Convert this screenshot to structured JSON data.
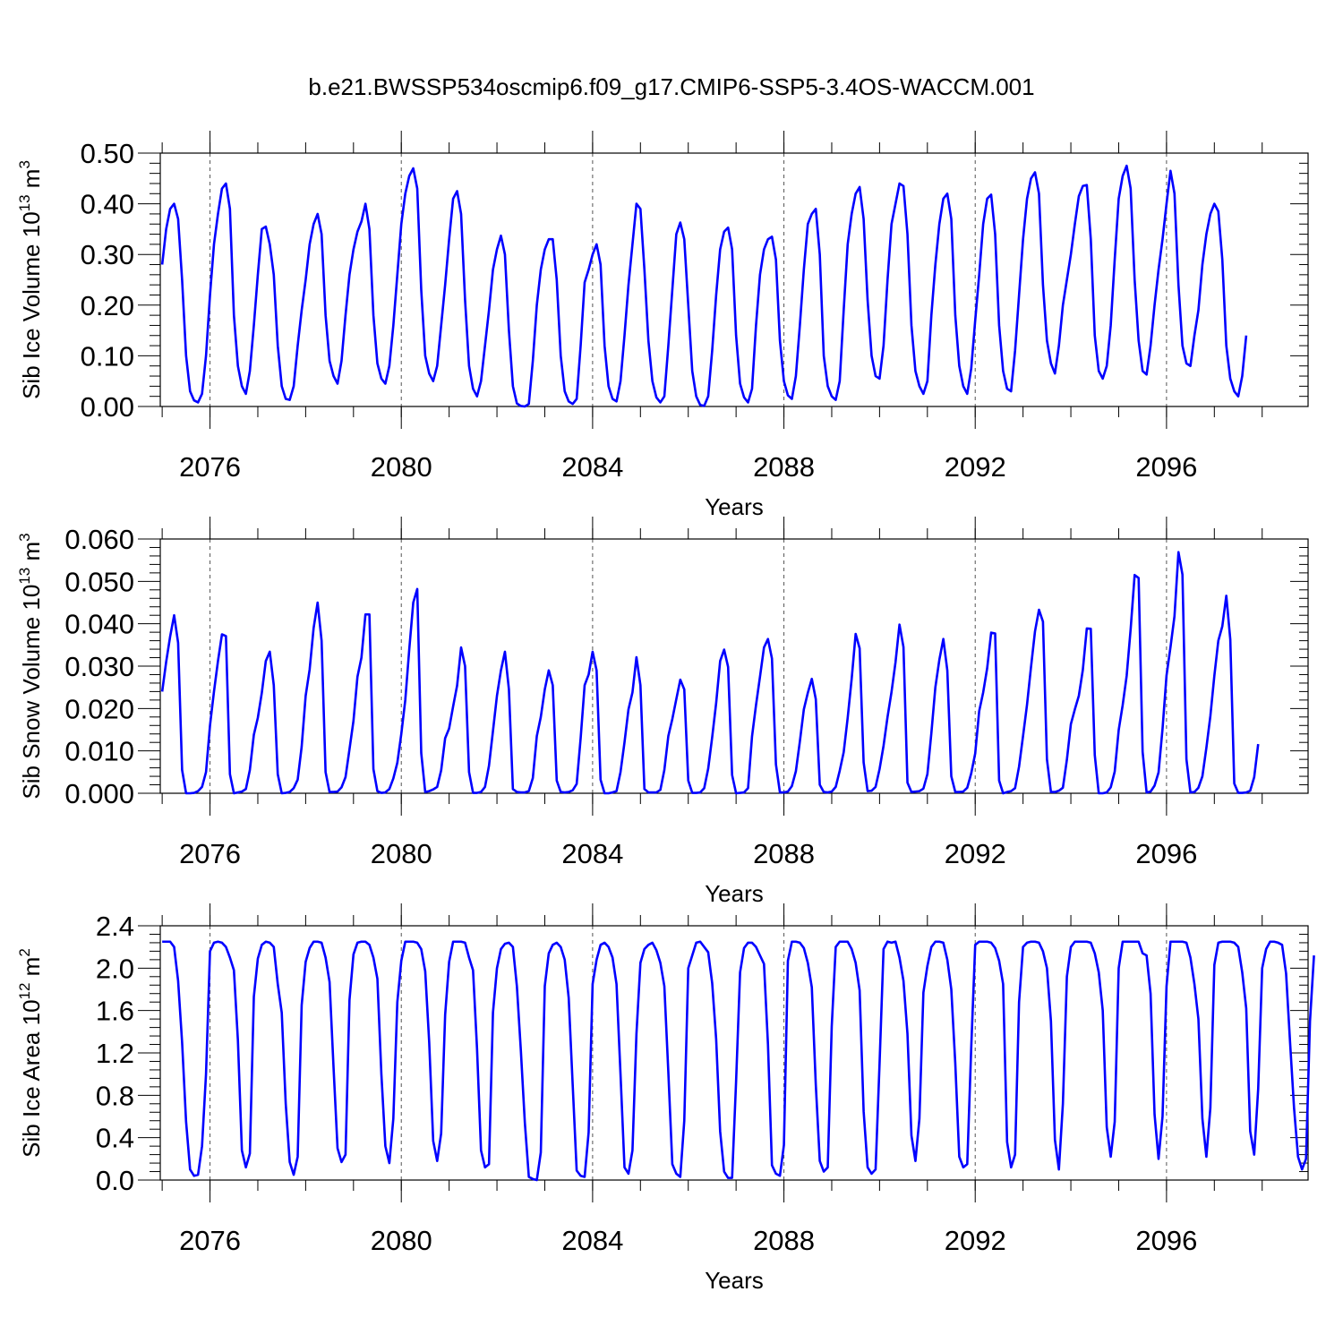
{
  "title": "b.e21.BWSSP534oscmip6.f09_g17.CMIP6-SSP5-3.4OS-WACCM.001",
  "line_color": "#0000ff",
  "chart_data": [
    {
      "type": "line",
      "ylabel_main": "Sib Ice Volume 10",
      "ylabel_exp": "13",
      "ylabel_unit": " m",
      "ylabel_unit_exp": "3",
      "xlabel": "Years",
      "xlim": [
        2074.96,
        2098.96
      ],
      "ylim": [
        0,
        0.5
      ],
      "x_ticks": [
        "2076",
        "2080",
        "2084",
        "2088",
        "2092",
        "2096"
      ],
      "y_ticks": [
        "0.00",
        "0.10",
        "0.20",
        "0.30",
        "0.40",
        "0.50"
      ],
      "grid_x": true,
      "x_start": 2075.0,
      "x_step_months": 1,
      "values": [
        0.28,
        0.35,
        0.39,
        0.4,
        0.37,
        0.25,
        0.1,
        0.03,
        0.012,
        0.008,
        0.025,
        0.1,
        0.22,
        0.32,
        0.38,
        0.43,
        0.44,
        0.39,
        0.18,
        0.08,
        0.04,
        0.025,
        0.07,
        0.16,
        0.26,
        0.35,
        0.355,
        0.32,
        0.26,
        0.12,
        0.04,
        0.015,
        0.013,
        0.04,
        0.12,
        0.19,
        0.25,
        0.32,
        0.36,
        0.38,
        0.34,
        0.18,
        0.09,
        0.06,
        0.045,
        0.09,
        0.18,
        0.26,
        0.31,
        0.345,
        0.365,
        0.4,
        0.35,
        0.18,
        0.085,
        0.055,
        0.045,
        0.08,
        0.16,
        0.26,
        0.36,
        0.42,
        0.455,
        0.47,
        0.43,
        0.23,
        0.1,
        0.065,
        0.05,
        0.08,
        0.16,
        0.24,
        0.33,
        0.41,
        0.425,
        0.38,
        0.21,
        0.08,
        0.035,
        0.02,
        0.05,
        0.12,
        0.19,
        0.27,
        0.31,
        0.337,
        0.3,
        0.15,
        0.04,
        0.006,
        0.001,
        0.0,
        0.005,
        0.09,
        0.2,
        0.27,
        0.31,
        0.33,
        0.33,
        0.25,
        0.1,
        0.03,
        0.01,
        0.005,
        0.015,
        0.12,
        0.245,
        0.27,
        0.3,
        0.32,
        0.28,
        0.12,
        0.04,
        0.015,
        0.01,
        0.05,
        0.14,
        0.24,
        0.32,
        0.4,
        0.39,
        0.27,
        0.13,
        0.05,
        0.018,
        0.008,
        0.02,
        0.12,
        0.23,
        0.34,
        0.363,
        0.33,
        0.2,
        0.07,
        0.02,
        0.003,
        0.001,
        0.02,
        0.11,
        0.22,
        0.31,
        0.345,
        0.353,
        0.31,
        0.14,
        0.045,
        0.018,
        0.008,
        0.035,
        0.16,
        0.26,
        0.31,
        0.33,
        0.335,
        0.29,
        0.13,
        0.05,
        0.022,
        0.015,
        0.06,
        0.16,
        0.27,
        0.36,
        0.38,
        0.39,
        0.3,
        0.1,
        0.04,
        0.02,
        0.013,
        0.05,
        0.19,
        0.32,
        0.38,
        0.42,
        0.433,
        0.37,
        0.21,
        0.1,
        0.06,
        0.055,
        0.12,
        0.25,
        0.36,
        0.4,
        0.44,
        0.435,
        0.34,
        0.16,
        0.07,
        0.04,
        0.025,
        0.05,
        0.18,
        0.28,
        0.36,
        0.41,
        0.42,
        0.37,
        0.18,
        0.08,
        0.04,
        0.025,
        0.075,
        0.17,
        0.26,
        0.36,
        0.41,
        0.418,
        0.34,
        0.16,
        0.07,
        0.035,
        0.03,
        0.11,
        0.22,
        0.33,
        0.41,
        0.45,
        0.462,
        0.42,
        0.24,
        0.13,
        0.085,
        0.065,
        0.12,
        0.2,
        0.25,
        0.3,
        0.36,
        0.415,
        0.435,
        0.437,
        0.33,
        0.14,
        0.07,
        0.055,
        0.08,
        0.16,
        0.29,
        0.41,
        0.455,
        0.475,
        0.43,
        0.25,
        0.13,
        0.07,
        0.063,
        0.12,
        0.2,
        0.27,
        0.33,
        0.4,
        0.465,
        0.42,
        0.24,
        0.12,
        0.085,
        0.08,
        0.14,
        0.19,
        0.28,
        0.34,
        0.38,
        0.4,
        0.385,
        0.29,
        0.12,
        0.055,
        0.03,
        0.02,
        0.06,
        0.14
      ]
    },
    {
      "type": "line",
      "ylabel_main": "Sib Snow Volume 10",
      "ylabel_exp": "13",
      "ylabel_unit": " m",
      "ylabel_unit_exp": "3",
      "xlabel": "Years",
      "xlim": [
        2074.96,
        2098.96
      ],
      "ylim": [
        0,
        0.06
      ],
      "x_ticks": [
        "2076",
        "2080",
        "2084",
        "2088",
        "2092",
        "2096"
      ],
      "y_ticks": [
        "0.000",
        "0.010",
        "0.020",
        "0.030",
        "0.040",
        "0.050",
        "0.060"
      ],
      "grid_x": true,
      "x_start": 2075.0,
      "x_step_months": 1,
      "values": [
        0.024,
        0.031,
        0.037,
        0.042,
        0.0355,
        0.0055,
        0.0,
        0.0,
        0.0001,
        0.0005,
        0.0015,
        0.005,
        0.016,
        0.024,
        0.0312,
        0.0375,
        0.0371,
        0.0045,
        0.0,
        0.0002,
        0.0004,
        0.001,
        0.0055,
        0.0138,
        0.0178,
        0.0237,
        0.0312,
        0.0334,
        0.0255,
        0.0045,
        0.0,
        0.0001,
        0.0003,
        0.0012,
        0.0032,
        0.011,
        0.023,
        0.0292,
        0.039,
        0.045,
        0.036,
        0.005,
        0.0003,
        0.0003,
        0.0004,
        0.0014,
        0.0038,
        0.0104,
        0.0171,
        0.0275,
        0.032,
        0.0422,
        0.0422,
        0.0057,
        0.0005,
        0.0001,
        0.0002,
        0.001,
        0.0035,
        0.0072,
        0.014,
        0.022,
        0.034,
        0.045,
        0.0482,
        0.0095,
        0.0003,
        0.0005,
        0.0009,
        0.0015,
        0.0054,
        0.013,
        0.0153,
        0.0205,
        0.0254,
        0.0344,
        0.03,
        0.005,
        0.0001,
        0.0001,
        0.0003,
        0.0015,
        0.0065,
        0.0147,
        0.023,
        0.029,
        0.0334,
        0.0245,
        0.001,
        0.0003,
        0.0002,
        0.0002,
        0.0005,
        0.0036,
        0.0135,
        0.018,
        0.0245,
        0.029,
        0.0255,
        0.003,
        0.0003,
        0.0002,
        0.0003,
        0.0007,
        0.0022,
        0.013,
        0.0255,
        0.028,
        0.0334,
        0.029,
        0.0032,
        0.0,
        0.0,
        0.0002,
        0.0005,
        0.005,
        0.012,
        0.0198,
        0.0238,
        0.0321,
        0.0255,
        0.001,
        0.0002,
        0.0002,
        0.0002,
        0.0008,
        0.0055,
        0.0135,
        0.0175,
        0.0222,
        0.0268,
        0.0245,
        0.003,
        0.0001,
        0.0001,
        0.0002,
        0.0012,
        0.0058,
        0.0132,
        0.0213,
        0.0312,
        0.0339,
        0.0298,
        0.0043,
        0.0,
        0.0001,
        0.0002,
        0.0012,
        0.0134,
        0.0208,
        0.0275,
        0.0344,
        0.0364,
        0.0318,
        0.0068,
        0.0002,
        0.0002,
        0.0004,
        0.0017,
        0.0052,
        0.0122,
        0.0198,
        0.0237,
        0.027,
        0.0222,
        0.002,
        0.0003,
        0.0002,
        0.0004,
        0.0015,
        0.0053,
        0.0097,
        0.0178,
        0.027,
        0.0376,
        0.0342,
        0.0073,
        0.0005,
        0.0006,
        0.0015,
        0.0057,
        0.0112,
        0.018,
        0.0239,
        0.0309,
        0.0398,
        0.0345,
        0.0025,
        0.0003,
        0.0004,
        0.0005,
        0.0011,
        0.0045,
        0.0142,
        0.025,
        0.0315,
        0.0364,
        0.029,
        0.004,
        0.0003,
        0.0003,
        0.0004,
        0.0013,
        0.0047,
        0.0094,
        0.0194,
        0.0238,
        0.0295,
        0.0379,
        0.0377,
        0.003,
        0.0,
        0.0003,
        0.0005,
        0.0012,
        0.0063,
        0.0135,
        0.0209,
        0.0298,
        0.0382,
        0.0433,
        0.0405,
        0.008,
        0.0003,
        0.0003,
        0.0006,
        0.0013,
        0.0079,
        0.0163,
        0.0198,
        0.023,
        0.0291,
        0.0389,
        0.0388,
        0.009,
        0.0,
        0.0,
        0.0002,
        0.0014,
        0.0051,
        0.0149,
        0.0208,
        0.0277,
        0.0387,
        0.0515,
        0.0508,
        0.0098,
        0.0002,
        0.0004,
        0.0018,
        0.0049,
        0.0152,
        0.0278,
        0.0345,
        0.0418,
        0.0569,
        0.0516,
        0.008,
        0.0002,
        0.0003,
        0.0013,
        0.004,
        0.0107,
        0.0182,
        0.0277,
        0.036,
        0.0394,
        0.0466,
        0.0363,
        0.0023,
        0.0001,
        0.0001,
        0.0002,
        0.0006,
        0.0038,
        0.0116
      ]
    },
    {
      "type": "line",
      "ylabel_main": "Sib Ice Area 10",
      "ylabel_exp": "12",
      "ylabel_unit": " m",
      "ylabel_unit_exp": "2",
      "xlabel": "Years",
      "xlim": [
        2074.96,
        2098.96
      ],
      "ylim": [
        0,
        2.4
      ],
      "x_ticks": [
        "2076",
        "2080",
        "2084",
        "2088",
        "2092",
        "2096"
      ],
      "y_ticks": [
        "0.0",
        "0.4",
        "0.8",
        "1.2",
        "1.6",
        "2.0",
        "2.4"
      ],
      "grid_x": true,
      "x_start": 2075.0,
      "x_step_months": 1,
      "values": [
        2.25,
        2.25,
        2.25,
        2.2,
        1.88,
        1.3,
        0.55,
        0.1,
        0.04,
        0.05,
        0.32,
        1.0,
        2.16,
        2.24,
        2.25,
        2.24,
        2.2,
        2.1,
        1.98,
        1.32,
        0.28,
        0.12,
        0.25,
        1.73,
        2.09,
        2.22,
        2.25,
        2.24,
        2.2,
        1.85,
        1.58,
        0.72,
        0.17,
        0.05,
        0.22,
        1.65,
        2.06,
        2.19,
        2.25,
        2.25,
        2.24,
        2.1,
        1.87,
        1.06,
        0.3,
        0.17,
        0.24,
        1.7,
        2.13,
        2.24,
        2.25,
        2.25,
        2.22,
        2.1,
        1.9,
        1.0,
        0.32,
        0.16,
        0.58,
        1.68,
        2.07,
        2.25,
        2.25,
        2.25,
        2.24,
        2.18,
        1.97,
        1.3,
        0.37,
        0.18,
        0.44,
        1.56,
        2.06,
        2.25,
        2.25,
        2.25,
        2.24,
        2.1,
        1.98,
        1.24,
        0.28,
        0.12,
        0.15,
        1.58,
        2.0,
        2.18,
        2.23,
        2.24,
        2.2,
        1.83,
        1.22,
        0.54,
        0.03,
        0.01,
        0.0,
        0.26,
        1.83,
        2.14,
        2.22,
        2.24,
        2.2,
        2.08,
        1.72,
        0.9,
        0.09,
        0.04,
        0.03,
        0.45,
        1.85,
        2.08,
        2.22,
        2.24,
        2.2,
        2.1,
        1.85,
        1.0,
        0.12,
        0.06,
        0.28,
        1.38,
        2.05,
        2.18,
        2.22,
        2.24,
        2.17,
        2.05,
        1.83,
        1.02,
        0.15,
        0.06,
        0.03,
        0.56,
        2.0,
        2.12,
        2.24,
        2.25,
        2.2,
        2.15,
        1.86,
        1.33,
        0.46,
        0.08,
        0.02,
        0.02,
        0.93,
        1.96,
        2.19,
        2.24,
        2.24,
        2.2,
        2.12,
        2.04,
        1.28,
        0.14,
        0.06,
        0.04,
        0.33,
        2.07,
        2.25,
        2.25,
        2.24,
        2.19,
        2.05,
        1.82,
        0.9,
        0.18,
        0.08,
        0.12,
        1.45,
        2.2,
        2.25,
        2.25,
        2.25,
        2.18,
        2.05,
        1.79,
        0.65,
        0.12,
        0.06,
        0.1,
        1.1,
        2.18,
        2.25,
        2.24,
        2.25,
        2.1,
        1.88,
        1.38,
        0.42,
        0.18,
        0.58,
        1.77,
        2.02,
        2.2,
        2.25,
        2.25,
        2.24,
        2.08,
        1.8,
        1.1,
        0.22,
        0.12,
        0.15,
        1.25,
        2.22,
        2.25,
        2.25,
        2.25,
        2.24,
        2.19,
        2.07,
        1.85,
        0.36,
        0.12,
        0.24,
        1.68,
        2.2,
        2.24,
        2.25,
        2.25,
        2.24,
        2.16,
        2.0,
        1.5,
        0.38,
        0.1,
        0.72,
        1.92,
        2.2,
        2.25,
        2.25,
        2.25,
        2.25,
        2.24,
        2.14,
        1.96,
        1.6,
        0.5,
        0.22,
        0.55,
        2.0,
        2.25,
        2.25,
        2.25,
        2.25,
        2.25,
        2.14,
        2.12,
        1.76,
        0.62,
        0.2,
        0.6,
        1.83,
        2.25,
        2.25,
        2.25,
        2.25,
        2.24,
        2.1,
        1.85,
        1.52,
        0.58,
        0.22,
        0.68,
        2.03,
        2.24,
        2.25,
        2.25,
        2.25,
        2.24,
        2.2,
        1.96,
        1.62,
        0.46,
        0.24,
        0.86,
        2.0,
        2.18,
        2.25,
        2.25,
        2.24,
        2.22,
        1.95,
        1.3,
        0.68,
        0.22,
        0.1,
        0.2,
        1.5,
        2.12
      ]
    }
  ]
}
